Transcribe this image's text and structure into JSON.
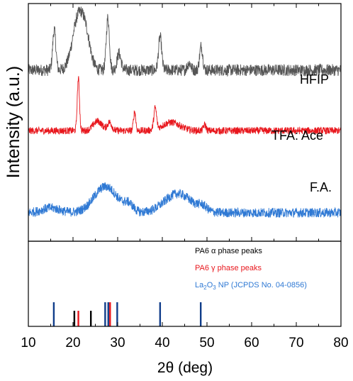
{
  "chart_data": {
    "type": "line",
    "xlabel": "2θ (deg)",
    "ylabel": "Intensity (a.u.)",
    "xlim": [
      10,
      80
    ],
    "xticks": [
      10,
      20,
      30,
      40,
      50,
      60,
      70,
      80
    ],
    "series": [
      {
        "name": "HFIP",
        "color": "#555555",
        "baseline": 0.72,
        "noise": 0.025,
        "peaks": [
          {
            "x": 15.8,
            "h": 0.17,
            "w": 0.35
          },
          {
            "x": 21.2,
            "h": 0.22,
            "w": 1.3
          },
          {
            "x": 23.0,
            "h": 0.1,
            "w": 1.0
          },
          {
            "x": 27.8,
            "h": 0.22,
            "w": 0.35
          },
          {
            "x": 30.3,
            "h": 0.07,
            "w": 0.45
          },
          {
            "x": 39.5,
            "h": 0.14,
            "w": 0.35
          },
          {
            "x": 46.0,
            "h": 0.03,
            "w": 0.4
          },
          {
            "x": 48.7,
            "h": 0.1,
            "w": 0.35
          }
        ]
      },
      {
        "name": "TFA: Ace",
        "color": "#e8171d",
        "baseline": 0.465,
        "noise": 0.015,
        "peaks": [
          {
            "x": 21.2,
            "h": 0.22,
            "w": 0.25
          },
          {
            "x": 25.5,
            "h": 0.04,
            "w": 1.0
          },
          {
            "x": 28.2,
            "h": 0.035,
            "w": 0.5
          },
          {
            "x": 33.8,
            "h": 0.08,
            "w": 0.25
          },
          {
            "x": 38.4,
            "h": 0.09,
            "w": 0.3
          },
          {
            "x": 42.0,
            "h": 0.035,
            "w": 2.0
          },
          {
            "x": 49.5,
            "h": 0.025,
            "w": 0.3
          }
        ]
      },
      {
        "name": "F.A.",
        "color": "#2f79d4",
        "baseline": 0.12,
        "noise": 0.02,
        "peaks": [
          {
            "x": 15.0,
            "h": 0.02,
            "w": 2.0
          },
          {
            "x": 27.3,
            "h": 0.11,
            "w": 2.6
          },
          {
            "x": 32.5,
            "h": 0.03,
            "w": 1.0
          },
          {
            "x": 43.5,
            "h": 0.08,
            "w": 3.0
          },
          {
            "x": 49.0,
            "h": 0.02,
            "w": 1.0
          }
        ]
      }
    ],
    "reference": {
      "legend": [
        {
          "label": "PA6 α phase peaks",
          "color": "#000000"
        },
        {
          "label": "PA6  γ phase peaks",
          "color": "#e8171d"
        },
        {
          "label_main": "La",
          "sub1": "2",
          "mid": "O",
          "sub2": "3",
          "tail": " NP  (JCPDS No. 04-0856)",
          "color": "#2f79d4"
        }
      ],
      "lines": [
        {
          "x": 20.3,
          "h": 0.55,
          "color": "#000000"
        },
        {
          "x": 24.0,
          "h": 0.55,
          "color": "#000000"
        },
        {
          "x": 21.2,
          "h": 0.55,
          "color": "#e8171d"
        },
        {
          "x": 28.3,
          "h": 0.85,
          "color": "#e8171d"
        },
        {
          "x": 15.7,
          "h": 0.85,
          "color": "#103d8a"
        },
        {
          "x": 27.2,
          "h": 0.85,
          "color": "#103d8a"
        },
        {
          "x": 27.9,
          "h": 0.85,
          "color": "#103d8a"
        },
        {
          "x": 29.9,
          "h": 0.85,
          "color": "#103d8a"
        },
        {
          "x": 39.5,
          "h": 0.85,
          "color": "#103d8a"
        },
        {
          "x": 48.6,
          "h": 0.85,
          "color": "#103d8a"
        }
      ]
    }
  }
}
